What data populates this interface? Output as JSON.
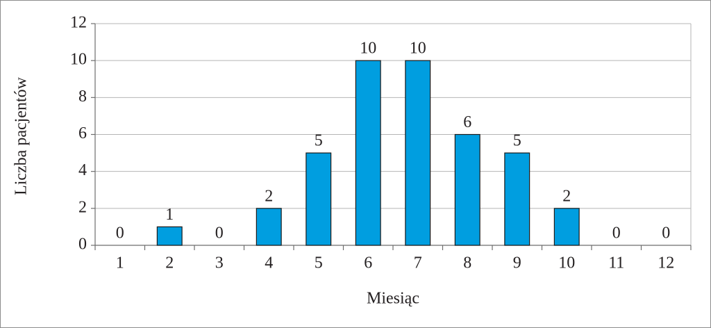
{
  "chart_data": {
    "type": "bar",
    "x_label": "Miesiąc",
    "y_label": "Liczba pacjentów",
    "categories": [
      "1",
      "2",
      "3",
      "4",
      "5",
      "6",
      "7",
      "8",
      "9",
      "10",
      "11",
      "12"
    ],
    "values": [
      0,
      1,
      0,
      2,
      5,
      10,
      10,
      6,
      5,
      2,
      0,
      0
    ],
    "color": "#009ee0",
    "ylim": [
      0,
      12
    ],
    "yticks": [
      0,
      2,
      4,
      6,
      8,
      10,
      12
    ],
    "grid": true
  }
}
